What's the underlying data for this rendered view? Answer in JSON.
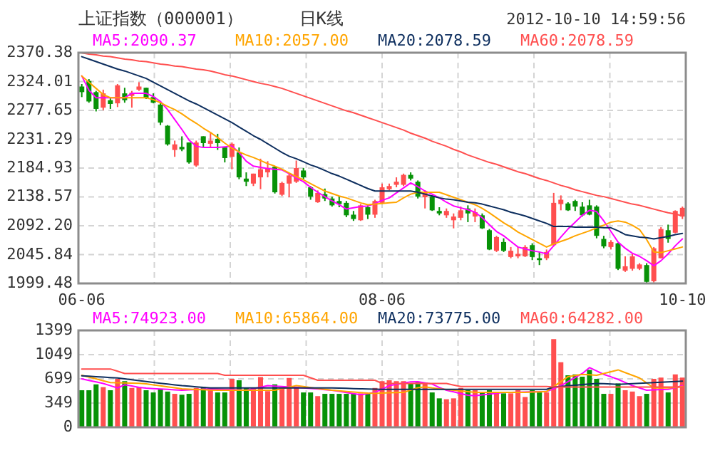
{
  "chart_data": [
    {
      "type": "candlestick",
      "title": "上证指数（000001）",
      "subtitle": "日K线",
      "annotations": [
        "2012-10-10 14:59:56"
      ],
      "categories": [
        "06-06",
        null,
        null,
        null,
        null,
        null,
        null,
        null,
        null,
        null,
        null,
        null,
        null,
        null,
        null,
        null,
        null,
        null,
        null,
        null,
        null,
        null,
        null,
        null,
        null,
        null,
        null,
        null,
        null,
        null,
        null,
        null,
        null,
        null,
        null,
        null,
        null,
        null,
        null,
        null,
        null,
        null,
        "08-06",
        null,
        null,
        null,
        null,
        null,
        null,
        null,
        null,
        null,
        null,
        null,
        null,
        null,
        null,
        null,
        null,
        null,
        null,
        null,
        null,
        null,
        null,
        null,
        null,
        null,
        null,
        null,
        null,
        null,
        null,
        null,
        null,
        null,
        null,
        null,
        null,
        null,
        null,
        null,
        null,
        null,
        "10-10"
      ],
      "ohlc": [
        [
          2316,
          2320,
          2299,
          2307
        ],
        [
          2325,
          2328,
          2290,
          2292
        ],
        [
          2307,
          2309,
          2276,
          2280
        ],
        [
          2282,
          2311,
          2278,
          2305
        ],
        [
          2294,
          2298,
          2280,
          2288
        ],
        [
          2289,
          2320,
          2283,
          2318
        ],
        [
          2305,
          2314,
          2290,
          2294
        ],
        [
          2301,
          2309,
          2282,
          2306
        ],
        [
          2311,
          2323,
          2309,
          2316
        ],
        [
          2314,
          2314,
          2296,
          2298
        ],
        [
          2299,
          2305,
          2289,
          2290
        ],
        [
          2287,
          2290,
          2254,
          2258
        ],
        [
          2253,
          2254,
          2221,
          2223
        ],
        [
          2214,
          2229,
          2203,
          2223
        ],
        [
          2219,
          2236,
          2212,
          2215
        ],
        [
          2226,
          2226,
          2192,
          2194
        ],
        [
          2189,
          2229,
          2187,
          2226
        ],
        [
          2236,
          2236,
          2219,
          2225
        ],
        [
          2224,
          2243,
          2218,
          2229
        ],
        [
          2232,
          2240,
          2214,
          2225
        ],
        [
          2218,
          2219,
          2194,
          2201
        ],
        [
          2203,
          2226,
          2183,
          2224
        ],
        [
          2210,
          2218,
          2167,
          2170
        ],
        [
          2168,
          2178,
          2156,
          2163
        ],
        [
          2160,
          2176,
          2156,
          2176
        ],
        [
          2170,
          2200,
          2151,
          2183
        ],
        [
          2178,
          2196,
          2170,
          2185
        ],
        [
          2187,
          2187,
          2144,
          2146
        ],
        [
          2142,
          2163,
          2140,
          2161
        ],
        [
          2160,
          2176,
          2138,
          2173
        ],
        [
          2163,
          2197,
          2161,
          2185
        ],
        [
          2181,
          2185,
          2167,
          2170
        ],
        [
          2154,
          2156,
          2134,
          2139
        ],
        [
          2130,
          2149,
          2129,
          2145
        ],
        [
          2143,
          2152,
          2132,
          2136
        ],
        [
          2136,
          2139,
          2123,
          2125
        ],
        [
          2132,
          2139,
          2122,
          2127
        ],
        [
          2129,
          2132,
          2106,
          2109
        ],
        [
          2110,
          2116,
          2100,
          2103
        ],
        [
          2101,
          2127,
          2100,
          2125
        ],
        [
          2122,
          2125,
          2103,
          2110
        ],
        [
          2110,
          2134,
          2105,
          2132
        ],
        [
          2129,
          2160,
          2127,
          2154
        ],
        [
          2151,
          2160,
          2149,
          2156
        ],
        [
          2158,
          2170,
          2154,
          2163
        ],
        [
          2158,
          2176,
          2156,
          2174
        ],
        [
          2174,
          2178,
          2165,
          2168
        ],
        [
          2163,
          2165,
          2136,
          2139
        ],
        [
          2138,
          2149,
          2120,
          2145
        ],
        [
          2139,
          2141,
          2116,
          2117
        ],
        [
          2116,
          2122,
          2109,
          2112
        ],
        [
          2109,
          2120,
          2105,
          2116
        ],
        [
          2101,
          2112,
          2088,
          2107
        ],
        [
          2105,
          2123,
          2101,
          2117
        ],
        [
          2120,
          2125,
          2098,
          2112
        ],
        [
          2107,
          2120,
          2098,
          2114
        ],
        [
          2109,
          2112,
          2087,
          2088
        ],
        [
          2085,
          2087,
          2053,
          2054
        ],
        [
          2052,
          2076,
          2050,
          2074
        ],
        [
          2066,
          2072,
          2050,
          2052
        ],
        [
          2042,
          2058,
          2040,
          2052
        ],
        [
          2043,
          2058,
          2040,
          2047
        ],
        [
          2043,
          2061,
          2042,
          2058
        ],
        [
          2061,
          2064,
          2037,
          2042
        ],
        [
          2040,
          2050,
          2029,
          2037
        ],
        [
          2040,
          2054,
          2037,
          2050
        ],
        [
          2061,
          2145,
          2059,
          2129
        ],
        [
          2127,
          2141,
          2117,
          2134
        ],
        [
          2128,
          2130,
          2116,
          2117
        ],
        [
          2132,
          2134,
          2116,
          2123
        ],
        [
          2123,
          2130,
          2107,
          2109
        ],
        [
          2125,
          2134,
          2109,
          2110
        ],
        [
          2123,
          2125,
          2072,
          2076
        ],
        [
          2071,
          2076,
          2056,
          2059
        ],
        [
          2058,
          2069,
          2054,
          2066
        ],
        [
          2064,
          2065,
          2021,
          2023
        ],
        [
          2020,
          2043,
          2018,
          2027
        ],
        [
          2023,
          2047,
          2020,
          2043
        ],
        [
          2023,
          2032,
          2021,
          2030
        ],
        [
          2029,
          2032,
          2000,
          2002
        ],
        [
          2003,
          2058,
          2001,
          2056
        ],
        [
          2040,
          2090,
          2040,
          2087
        ],
        [
          2085,
          2094,
          2065,
          2071
        ],
        [
          2081,
          2117,
          2080,
          2116
        ],
        [
          2107,
          2123,
          2103,
          2121
        ]
      ],
      "colors": [
        "#079207",
        "#079207",
        "#079207",
        "#ff4f4f",
        "#079207",
        "#ff4f4f",
        "#079207",
        "#ff4f4f",
        "#ff4f4f",
        "#079207",
        "#079207",
        "#079207",
        "#079207",
        "#ff4f4f",
        "#079207",
        "#079207",
        "#ff4f4f",
        "#079207",
        "#ff4f4f",
        "#079207",
        "#079207",
        "#ff4f4f",
        "#079207",
        "#079207",
        "#ff4f4f",
        "#ff4f4f",
        "#ff4f4f",
        "#079207",
        "#ff4f4f",
        "#ff4f4f",
        "#ff4f4f",
        "#079207",
        "#079207",
        "#ff4f4f",
        "#079207",
        "#079207",
        "#079207",
        "#079207",
        "#079207",
        "#ff4f4f",
        "#079207",
        "#ff4f4f",
        "#ff4f4f",
        "#ff4f4f",
        "#ff4f4f",
        "#ff4f4f",
        "#079207",
        "#079207",
        "#ff4f4f",
        "#079207",
        "#079207",
        "#ff4f4f",
        "#ff4f4f",
        "#ff4f4f",
        "#079207",
        "#ff4f4f",
        "#079207",
        "#079207",
        "#ff4f4f",
        "#079207",
        "#ff4f4f",
        "#ff4f4f",
        "#ff4f4f",
        "#079207",
        "#079207",
        "#ff4f4f",
        "#ff4f4f",
        "#ff4f4f",
        "#079207",
        "#079207",
        "#079207",
        "#079207",
        "#079207",
        "#079207",
        "#ff4f4f",
        "#079207",
        "#ff4f4f",
        "#ff4f4f",
        "#ff4f4f",
        "#079207",
        "#ff4f4f",
        "#ff4f4f",
        "#079207",
        "#ff4f4f",
        "#ff4f4f"
      ],
      "series": [
        {
          "name": "MA5:2090.37",
          "type": "line",
          "color": "#ff00ff",
          "values": [
            2333,
            2310,
            2298,
            2298,
            2298,
            2298,
            2298,
            2305,
            2305,
            2305,
            2300,
            2292,
            2279,
            2263,
            2247,
            2230,
            2220,
            2218,
            2218,
            2218,
            2219,
            2220,
            2210,
            2196,
            2188,
            2186,
            2184,
            2183,
            2182,
            2176,
            2169,
            2163,
            2154,
            2146,
            2139,
            2132,
            2126,
            2119,
            2121,
            2123,
            2124,
            2128,
            2133,
            2137,
            2145,
            2153,
            2161,
            2155,
            2148,
            2143,
            2137,
            2130,
            2124,
            2121,
            2118,
            2114,
            2105,
            2094,
            2083,
            2076,
            2067,
            2058,
            2055,
            2052,
            2050,
            2047,
            2060,
            2074,
            2087,
            2098,
            2109,
            2117,
            2115,
            2100,
            2083,
            2066,
            2056,
            2048,
            2043,
            2036,
            2028,
            2036,
            2047,
            2060,
            2071
          ]
        },
        {
          "name": "MA10:2057.00",
          "type": "line",
          "color": "#ffa500",
          "values": [
            2333,
            2323,
            2313,
            2303,
            2298,
            2298,
            2298,
            2298,
            2298,
            2298,
            2295,
            2290,
            2284,
            2279,
            2272,
            2264,
            2257,
            2249,
            2242,
            2234,
            2225,
            2217,
            2211,
            2206,
            2202,
            2197,
            2192,
            2188,
            2183,
            2177,
            2171,
            2166,
            2160,
            2154,
            2148,
            2144,
            2140,
            2137,
            2133,
            2129,
            2126,
            2127,
            2128,
            2129,
            2130,
            2137,
            2143,
            2146,
            2146,
            2146,
            2146,
            2142,
            2138,
            2134,
            2130,
            2126,
            2120,
            2113,
            2105,
            2097,
            2090,
            2082,
            2076,
            2070,
            2064,
            2058,
            2063,
            2067,
            2071,
            2076,
            2080,
            2084,
            2089,
            2093,
            2098,
            2100,
            2098,
            2093,
            2086,
            2070,
            2050,
            2049,
            2052,
            2055,
            2058
          ]
        },
        {
          "name": "MA20:2078.59",
          "type": "line",
          "color": "#0d2e5e",
          "values": [
            2364,
            2360,
            2356,
            2352,
            2348,
            2344,
            2341,
            2337,
            2333,
            2329,
            2323,
            2317,
            2311,
            2305,
            2299,
            2293,
            2288,
            2282,
            2276,
            2270,
            2264,
            2258,
            2251,
            2244,
            2237,
            2231,
            2224,
            2217,
            2210,
            2204,
            2200,
            2195,
            2190,
            2186,
            2181,
            2176,
            2172,
            2167,
            2162,
            2157,
            2152,
            2148,
            2148,
            2148,
            2148,
            2148,
            2148,
            2146,
            2143,
            2140,
            2137,
            2135,
            2134,
            2132,
            2130,
            2129,
            2127,
            2124,
            2121,
            2118,
            2114,
            2111,
            2108,
            2104,
            2100,
            2096,
            2091,
            2091,
            2091,
            2090,
            2090,
            2090,
            2090,
            2089,
            2089,
            2084,
            2078,
            2076,
            2074,
            2073,
            2071,
            2073,
            2075,
            2078,
            2080
          ]
        },
        {
          "name": "MA60:2078.59",
          "type": "line",
          "color": "#ff4f4f",
          "values": [
            2370,
            2368,
            2367,
            2365,
            2364,
            2362,
            2360,
            2359,
            2357,
            2356,
            2354,
            2352,
            2351,
            2349,
            2348,
            2346,
            2344,
            2343,
            2341,
            2338,
            2335,
            2333,
            2330,
            2327,
            2324,
            2321,
            2319,
            2316,
            2313,
            2309,
            2305,
            2301,
            2297,
            2293,
            2289,
            2285,
            2281,
            2277,
            2274,
            2270,
            2266,
            2262,
            2258,
            2254,
            2250,
            2246,
            2241,
            2237,
            2233,
            2228,
            2224,
            2220,
            2215,
            2211,
            2206,
            2202,
            2198,
            2194,
            2191,
            2187,
            2183,
            2179,
            2176,
            2172,
            2168,
            2165,
            2161,
            2157,
            2154,
            2150,
            2147,
            2144,
            2141,
            2139,
            2136,
            2133,
            2130,
            2127,
            2125,
            2122,
            2119,
            2116,
            2113,
            2111,
            2108
          ]
        }
      ],
      "ylim": [
        1999.48,
        2370.38
      ],
      "yticks": [
        1999.48,
        2045.84,
        {
          "value": 2092.2,
          "label": "2092.20"
        },
        2138.57,
        2184.93,
        2231.29,
        2277.65,
        2324.01,
        2370.38
      ],
      "grid": true,
      "legend": "top"
    },
    {
      "type": "bar",
      "categories": [
        null,
        null,
        null,
        null,
        null,
        null,
        null,
        null,
        null,
        null,
        null,
        null,
        null,
        null,
        null,
        null,
        null,
        null,
        null,
        null,
        null,
        null,
        null,
        null,
        null,
        null,
        null,
        null,
        null,
        null,
        null,
        null,
        null,
        null,
        null,
        null,
        null,
        null,
        null,
        null,
        null,
        null,
        null,
        null,
        null,
        null,
        null,
        null,
        null,
        null,
        null,
        null,
        null,
        null,
        null,
        null,
        null,
        null,
        null,
        null,
        null,
        null,
        null,
        null,
        null,
        null,
        null,
        null,
        null,
        null,
        null,
        null,
        null,
        null,
        null,
        null,
        null,
        null,
        null,
        null,
        null,
        null,
        null,
        null,
        null
      ],
      "values": [
        535,
        535,
        620,
        580,
        535,
        700,
        666,
        568,
        580,
        535,
        503,
        548,
        516,
        483,
        470,
        483,
        568,
        580,
        568,
        503,
        503,
        700,
        679,
        568,
        568,
        725,
        522,
        620,
        580,
        712,
        580,
        503,
        503,
        450,
        483,
        483,
        483,
        483,
        483,
        490,
        483,
        568,
        666,
        679,
        666,
        666,
        633,
        646,
        646,
        503,
        418,
        405,
        418,
        568,
        535,
        535,
        503,
        535,
        503,
        490,
        490,
        535,
        437,
        535,
        503,
        503,
        1273,
        940,
        751,
        764,
        731,
        829,
        700,
        483,
        483,
        633,
        535,
        516,
        450,
        483,
        700,
        718,
        503,
        764,
        718
      ],
      "colors": [
        "#079207",
        "#079207",
        "#079207",
        "#ff4f4f",
        "#079207",
        "#ff4f4f",
        "#079207",
        "#ff4f4f",
        "#ff4f4f",
        "#079207",
        "#079207",
        "#079207",
        "#079207",
        "#ff4f4f",
        "#079207",
        "#079207",
        "#ff4f4f",
        "#079207",
        "#ff4f4f",
        "#079207",
        "#079207",
        "#ff4f4f",
        "#079207",
        "#079207",
        "#ff4f4f",
        "#ff4f4f",
        "#ff4f4f",
        "#079207",
        "#ff4f4f",
        "#ff4f4f",
        "#ff4f4f",
        "#079207",
        "#079207",
        "#ff4f4f",
        "#079207",
        "#079207",
        "#079207",
        "#079207",
        "#079207",
        "#ff4f4f",
        "#079207",
        "#ff4f4f",
        "#ff4f4f",
        "#ff4f4f",
        "#ff4f4f",
        "#ff4f4f",
        "#079207",
        "#079207",
        "#ff4f4f",
        "#079207",
        "#079207",
        "#ff4f4f",
        "#ff4f4f",
        "#ff4f4f",
        "#079207",
        "#ff4f4f",
        "#079207",
        "#079207",
        "#ff4f4f",
        "#079207",
        "#ff4f4f",
        "#ff4f4f",
        "#ff4f4f",
        "#079207",
        "#079207",
        "#ff4f4f",
        "#ff4f4f",
        "#ff4f4f",
        "#079207",
        "#079207",
        "#079207",
        "#079207",
        "#079207",
        "#079207",
        "#ff4f4f",
        "#079207",
        "#ff4f4f",
        "#ff4f4f",
        "#ff4f4f",
        "#079207",
        "#ff4f4f",
        "#ff4f4f",
        "#079207",
        "#ff4f4f",
        "#ff4f4f"
      ],
      "series": [
        {
          "name": "MA5:74923.00",
          "type": "line",
          "color": "#ff00ff",
          "values": [
            699,
            677,
            655,
            633,
            600,
            568,
            614,
            596,
            577,
            565,
            559,
            553,
            547,
            541,
            535,
            540,
            545,
            550,
            555,
            553,
            549,
            544,
            540,
            535,
            557,
            579,
            601,
            594,
            588,
            581,
            575,
            568,
            560,
            552,
            543,
            535,
            519,
            502,
            486,
            470,
            486,
            503,
            552,
            601,
            620,
            638,
            657,
            658,
            641,
            624,
            575,
            535,
            511,
            486,
            462,
            455,
            467,
            479,
            491,
            503,
            505,
            507,
            509,
            512,
            514,
            516,
            558,
            601,
            660,
            718,
            777,
            862,
            813,
            764,
            729,
            692,
            646,
            601,
            568,
            535,
            539,
            544,
            548,
            574,
            601
          ]
        },
        {
          "name": "MA10:65864.00",
          "type": "line",
          "color": "#ffa500",
          "values": [
            751,
            725,
            699,
            672,
            646,
            643,
            640,
            637,
            634,
            627,
            613,
            599,
            584,
            570,
            555,
            551,
            546,
            542,
            537,
            535,
            535,
            535,
            535,
            535,
            535,
            535,
            535,
            535,
            557,
            579,
            601,
            588,
            574,
            561,
            548,
            535,
            526,
            518,
            510,
            501,
            493,
            491,
            495,
            498,
            501,
            503,
            537,
            571,
            583,
            568,
            556,
            544,
            535,
            524,
            514,
            503,
            503,
            503,
            503,
            503,
            503,
            503,
            503,
            508,
            512,
            516,
            588,
            660,
            731,
            748,
            764,
            758,
            751,
            777,
            803,
            829,
            790,
            751,
            712,
            640,
            568,
            568,
            568,
            575,
            588
          ]
        },
        {
          "name": "MA20:73775.00",
          "type": "line",
          "color": "#0d2e5e",
          "values": [
            744,
            738,
            731,
            725,
            718,
            712,
            699,
            686,
            673,
            660,
            648,
            636,
            624,
            613,
            601,
            593,
            585,
            576,
            568,
            568,
            568,
            568,
            568,
            568,
            568,
            568,
            568,
            568,
            568,
            568,
            568,
            568,
            568,
            568,
            568,
            568,
            565,
            562,
            559,
            556,
            554,
            551,
            548,
            548,
            548,
            548,
            548,
            548,
            548,
            548,
            548,
            548,
            548,
            548,
            548,
            548,
            548,
            548,
            548,
            548,
            548,
            548,
            548,
            548,
            548,
            548,
            581,
            590,
            598,
            607,
            616,
            624,
            633,
            629,
            624,
            620,
            625,
            630,
            635,
            640,
            645,
            650,
            656,
            661,
            666
          ]
        },
        {
          "name": "MA60:64282.00",
          "type": "line",
          "color": "#ff4f4f",
          "values": [
            842,
            842,
            842,
            842,
            842,
            810,
            777,
            777,
            777,
            777,
            777,
            777,
            777,
            777,
            777,
            777,
            777,
            777,
            777,
            777,
            751,
            751,
            751,
            751,
            751,
            751,
            751,
            751,
            751,
            751,
            751,
            751,
            715,
            679,
            679,
            679,
            679,
            679,
            679,
            679,
            679,
            679,
            633,
            633,
            633,
            633,
            633,
            633,
            633,
            633,
            633,
            633,
            610,
            588,
            588,
            588,
            588,
            588,
            588,
            588,
            588,
            588,
            588,
            588,
            588,
            588,
            581,
            581,
            581,
            581,
            581,
            581,
            581,
            581,
            581,
            581,
            581,
            581,
            581,
            581,
            581,
            581,
            581,
            581,
            581
          ]
        }
      ],
      "ylim": [
        0,
        1399
      ],
      "yticks": [
        0,
        349,
        699,
        1049,
        1399
      ],
      "grid": true,
      "legend": "top"
    }
  ]
}
